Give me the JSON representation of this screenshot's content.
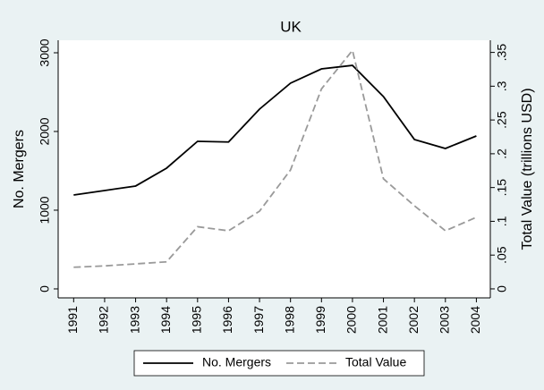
{
  "chart_data": {
    "type": "line",
    "title": "UK",
    "x": [
      1991,
      1992,
      1993,
      1994,
      1995,
      1996,
      1997,
      1998,
      1999,
      2000,
      2001,
      2002,
      2003,
      2004
    ],
    "series": [
      {
        "name": "No. Mergers",
        "color": "#000000",
        "dash": false,
        "values": [
          1193,
          1250,
          1307,
          1534,
          1875,
          1866,
          2284,
          2614,
          2795,
          2840,
          2443,
          1898,
          1784,
          1943
        ]
      },
      {
        "name": "Total Value",
        "color": "#9a9a9a",
        "dash": true,
        "axis": "y2",
        "values": [
          0.032,
          0.034,
          0.037,
          0.04,
          0.092,
          0.086,
          0.115,
          0.176,
          0.296,
          0.353,
          0.163,
          0.123,
          0.086,
          0.106
        ]
      }
    ],
    "y_label": "No. Mergers",
    "y2_label": "Total Value (trillions USD)",
    "xlim": [
      1990.5,
      2004.45
    ],
    "xticks": [
      1991,
      1992,
      1993,
      1994,
      1995,
      1996,
      1997,
      1998,
      1999,
      2000,
      2001,
      2002,
      2003,
      2004
    ],
    "ylim": [
      -114,
      3159
    ],
    "yticks": [
      0,
      1000,
      2000,
      3000
    ],
    "y2lim": [
      -0.0133,
      0.368
    ],
    "y2ticks": [
      0,
      {
        "value": 0.05,
        "label": ".05"
      },
      {
        "value": 0.1,
        "label": ".1"
      },
      {
        "value": 0.15,
        "label": ".15"
      },
      {
        "value": 0.2,
        "label": ".2"
      },
      {
        "value": 0.25,
        "label": ".25"
      },
      {
        "value": 0.3,
        "label": ".3"
      },
      {
        "value": 0.35,
        "label": ".35"
      }
    ],
    "grid": false,
    "legend": "bottom"
  }
}
